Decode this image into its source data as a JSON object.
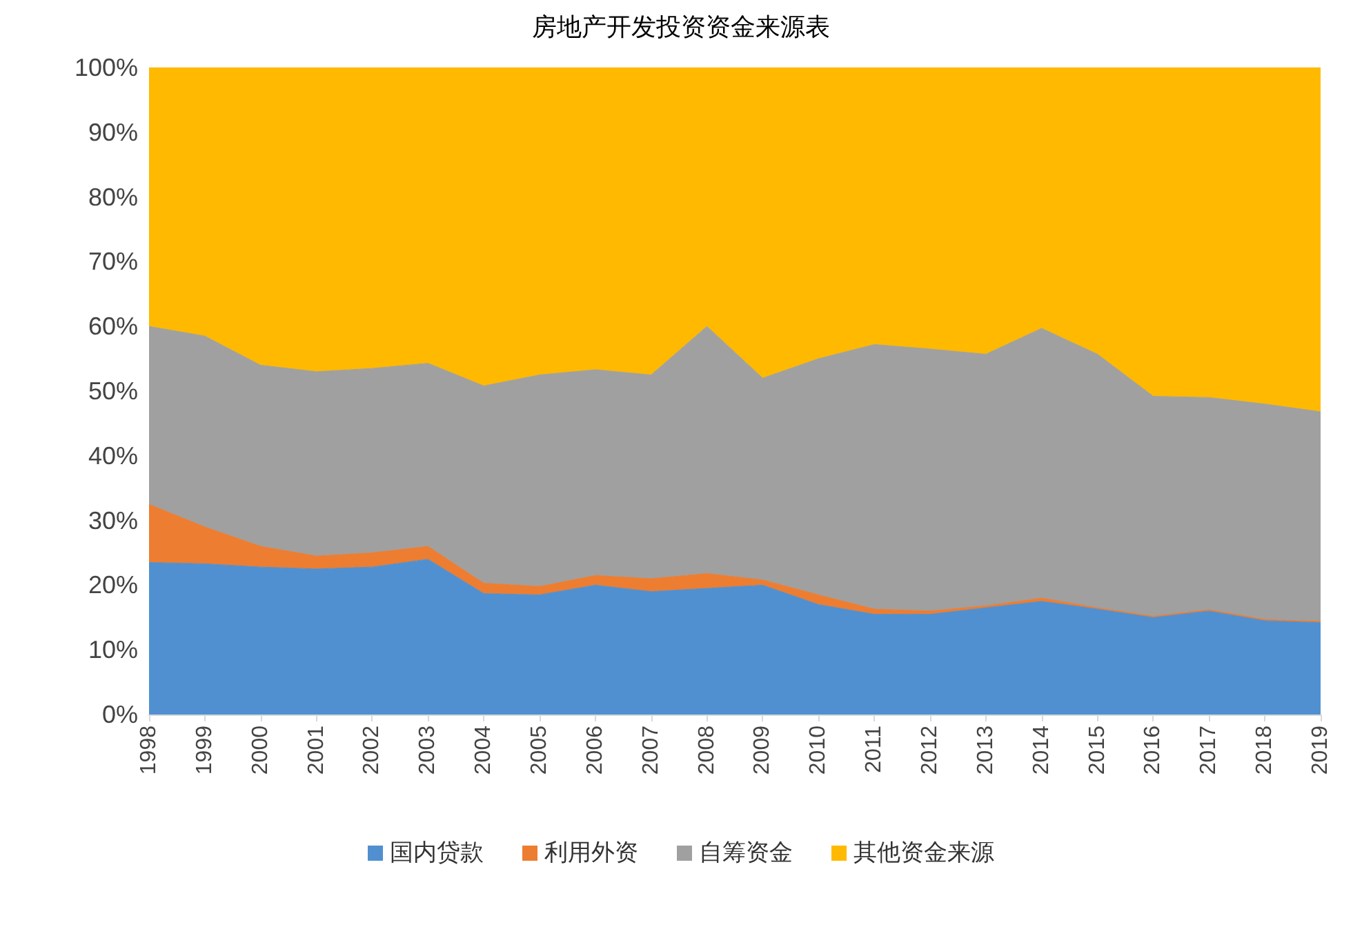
{
  "chart_data": {
    "type": "area",
    "title": "房地产开发投资资金来源表",
    "stacked": true,
    "legend": "bottom",
    "grid": false,
    "marker": "none",
    "categories": [
      "1998",
      "1999",
      "2000",
      "2001",
      "2002",
      "2003",
      "2004",
      "2005",
      "2006",
      "2007",
      "2008",
      "2009",
      "2010",
      "2011",
      "2012",
      "2013",
      "2014",
      "2015",
      "2016",
      "2017",
      "2018",
      "2019"
    ],
    "ylim": [
      0,
      100
    ],
    "yticks": [
      {
        "value": 0,
        "label": "0%"
      },
      {
        "value": 10,
        "label": "10%"
      },
      {
        "value": 20,
        "label": "20%"
      },
      {
        "value": 30,
        "label": "30%"
      },
      {
        "value": 40,
        "label": "40%"
      },
      {
        "value": 50,
        "label": "50%"
      },
      {
        "value": 60,
        "label": "60%"
      },
      {
        "value": 70,
        "label": "70%"
      },
      {
        "value": 80,
        "label": "80%"
      },
      {
        "value": 90,
        "label": "90%"
      },
      {
        "value": 100,
        "label": "100%"
      }
    ],
    "series": [
      {
        "name": "国内贷款",
        "color": "#5090d0",
        "values": [
          23.5,
          23.3,
          22.8,
          22.5,
          22.8,
          24,
          18.7,
          18.5,
          20,
          19,
          19.5,
          20,
          17,
          15.5,
          15.5,
          16.5,
          17.5,
          16.3,
          15,
          16,
          14.5,
          14.2
        ]
      },
      {
        "name": "利用外资",
        "color": "#ed7d31",
        "values": [
          9,
          5.7,
          3.2,
          2,
          2.2,
          2,
          1.6,
          1.3,
          1.5,
          2,
          2.3,
          0.8,
          1.5,
          0.8,
          0.5,
          0.3,
          0.5,
          0.2,
          0.2,
          0.2,
          0.2,
          0.2
        ]
      },
      {
        "name": "自筹资金",
        "color": "#a0a0a0",
        "values": [
          27.5,
          29.5,
          28,
          28.5,
          28.5,
          28.3,
          30.5,
          32.7,
          31.8,
          31.5,
          38.2,
          31.2,
          36.5,
          40.9,
          40.5,
          38.9,
          41.7,
          39.2,
          34,
          32.8,
          33.3,
          32.4
        ]
      },
      {
        "name": "其他资金来源",
        "color": "#ffb900",
        "values": [
          40,
          41.5,
          46,
          47,
          46.5,
          45.7,
          49.2,
          47.5,
          46.7,
          47.5,
          40,
          48,
          45,
          42.8,
          43.5,
          44.3,
          40.3,
          44.3,
          50.8,
          51,
          52,
          53.2
        ]
      }
    ]
  }
}
